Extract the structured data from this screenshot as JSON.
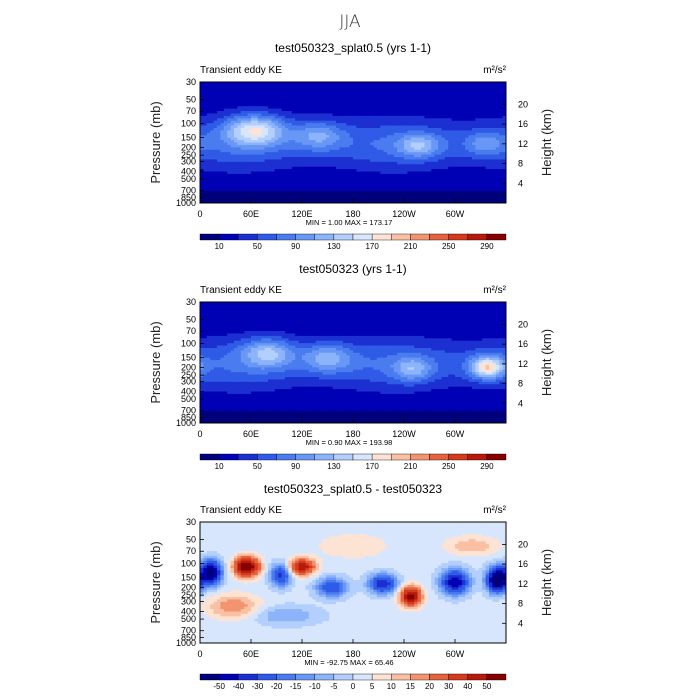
{
  "figure": {
    "suptitle": "JJA"
  },
  "colormaps": {
    "ke": [
      "#00007a",
      "#0000b4",
      "#1c30d2",
      "#2f5be6",
      "#4a7cf0",
      "#6897f6",
      "#8db4fb",
      "#b3cffd",
      "#d8e6fd",
      "#fde3d4",
      "#f9c0a4",
      "#f29470",
      "#e5623f",
      "#d53a1c",
      "#b71a0c",
      "#860000"
    ],
    "diff": [
      "#00007a",
      "#0000b4",
      "#1c30d2",
      "#2f5be6",
      "#4a7cf0",
      "#6897f6",
      "#8db4fb",
      "#b3cffd",
      "#d8e6fd",
      "#fde3d4",
      "#f9c0a4",
      "#f29470",
      "#e5623f",
      "#d53a1c",
      "#b71a0c",
      "#860000"
    ]
  },
  "chart_data": [
    {
      "type": "heatmap",
      "title": "test050323_splat0.5 (yrs 1-1)",
      "subtitle_left": "Transient eddy KE",
      "units": "m²/s²",
      "ylabel": "Pressure (mb)",
      "ylabel_right": "Height (km)",
      "xticks": [
        "0",
        "60E",
        "120E",
        "180",
        "120W",
        "60W"
      ],
      "xtick_lon": [
        0,
        60,
        120,
        180,
        240,
        300
      ],
      "xlim_lon": [
        0,
        360
      ],
      "yticks": [
        30,
        50,
        70,
        100,
        150,
        200,
        250,
        300,
        400,
        500,
        700,
        850,
        1000
      ],
      "ylim_mb": [
        1000,
        30
      ],
      "yscale": "log",
      "height_ticks_km": [
        4,
        8,
        12,
        16,
        20
      ],
      "min_label": "MIN =",
      "min_value": "1.00",
      "max_label": "MAX =",
      "max_value": "173.17",
      "colorbar_levels": [
        10,
        30,
        50,
        70,
        90,
        110,
        130,
        150,
        170,
        190,
        210,
        230,
        250,
        270,
        290
      ],
      "colorbar_ticks": [
        10,
        50,
        90,
        130,
        170,
        210,
        250,
        290
      ],
      "colormap": "ke",
      "jets": [
        {
          "lon": 65,
          "p": 120,
          "value": 175,
          "lon_width": 35,
          "logp_width": 0.19
        },
        {
          "lon": 140,
          "p": 140,
          "value": 120,
          "lon_width": 28,
          "logp_width": 0.18
        },
        {
          "lon": 258,
          "p": 190,
          "value": 125,
          "lon_width": 25,
          "logp_width": 0.15
        },
        {
          "lon": 335,
          "p": 180,
          "value": 105,
          "lon_width": 22,
          "logp_width": 0.15
        }
      ]
    },
    {
      "type": "heatmap",
      "title": "test050323 (yrs 1-1)",
      "subtitle_left": "Transient eddy KE",
      "units": "m²/s²",
      "ylabel": "Pressure (mb)",
      "ylabel_right": "Height (km)",
      "xticks": [
        "0",
        "60E",
        "120E",
        "180",
        "120W",
        "60W"
      ],
      "xtick_lon": [
        0,
        60,
        120,
        180,
        240,
        300
      ],
      "xlim_lon": [
        0,
        360
      ],
      "yticks": [
        30,
        50,
        70,
        100,
        150,
        200,
        250,
        300,
        400,
        500,
        700,
        850,
        1000
      ],
      "ylim_mb": [
        1000,
        30
      ],
      "yscale": "log",
      "height_ticks_km": [
        4,
        8,
        12,
        16,
        20
      ],
      "min_label": "MIN =",
      "min_value": "0.90",
      "max_label": "MAX =",
      "max_value": "193.98",
      "colorbar_levels": [
        10,
        30,
        50,
        70,
        90,
        110,
        130,
        150,
        170,
        190,
        210,
        230,
        250,
        270,
        290
      ],
      "colorbar_ticks": [
        10,
        50,
        90,
        130,
        170,
        210,
        250,
        290
      ],
      "colormap": "ke",
      "jets": [
        {
          "lon": 80,
          "p": 130,
          "value": 140,
          "lon_width": 30,
          "logp_width": 0.18
        },
        {
          "lon": 150,
          "p": 150,
          "value": 125,
          "lon_width": 28,
          "logp_width": 0.18
        },
        {
          "lon": 250,
          "p": 210,
          "value": 120,
          "lon_width": 22,
          "logp_width": 0.15
        },
        {
          "lon": 338,
          "p": 200,
          "value": 190,
          "lon_width": 20,
          "logp_width": 0.14
        }
      ]
    },
    {
      "type": "heatmap",
      "title": "test050323_splat0.5 - test050323",
      "subtitle_left": "Transient eddy KE",
      "units": "m²/s²",
      "ylabel": "Pressure (mb)",
      "ylabel_right": "Height (km)",
      "xticks": [
        "0",
        "60E",
        "120E",
        "180",
        "120W",
        "60W"
      ],
      "xtick_lon": [
        0,
        60,
        120,
        180,
        240,
        300
      ],
      "xlim_lon": [
        0,
        360
      ],
      "yticks": [
        30,
        50,
        70,
        100,
        150,
        200,
        250,
        300,
        400,
        500,
        700,
        850,
        1000
      ],
      "ylim_mb": [
        1000,
        30
      ],
      "yscale": "log",
      "height_ticks_km": [
        4,
        8,
        12,
        16,
        20
      ],
      "min_label": "MIN =",
      "min_value": "-92.75",
      "max_label": "MAX =",
      "max_value": "65.46",
      "colorbar_levels": [
        -50,
        -40,
        -30,
        -20,
        -15,
        -10,
        -5,
        0,
        5,
        10,
        15,
        20,
        30,
        40,
        50
      ],
      "colorbar_ticks": [
        -50,
        -40,
        -30,
        -20,
        -15,
        -10,
        -5,
        0,
        5,
        10,
        15,
        20,
        30,
        40,
        50
      ],
      "colormap": "diff",
      "anomalies": [
        {
          "lon": 55,
          "p": 110,
          "value": 62,
          "lon_width": 14,
          "logp_width": 0.12
        },
        {
          "lon": 13,
          "p": 130,
          "value": -60,
          "lon_width": 12,
          "logp_width": 0.15
        },
        {
          "lon": 95,
          "p": 140,
          "value": -35,
          "lon_width": 12,
          "logp_width": 0.14
        },
        {
          "lon": 120,
          "p": 110,
          "value": 45,
          "lon_width": 15,
          "logp_width": 0.1
        },
        {
          "lon": 155,
          "p": 200,
          "value": -30,
          "lon_width": 18,
          "logp_width": 0.12
        },
        {
          "lon": 215,
          "p": 180,
          "value": -40,
          "lon_width": 16,
          "logp_width": 0.12
        },
        {
          "lon": 248,
          "p": 260,
          "value": 55,
          "lon_width": 12,
          "logp_width": 0.12
        },
        {
          "lon": 300,
          "p": 170,
          "value": -50,
          "lon_width": 16,
          "logp_width": 0.15
        },
        {
          "lon": 350,
          "p": 160,
          "value": -70,
          "lon_width": 12,
          "logp_width": 0.15
        },
        {
          "lon": 40,
          "p": 350,
          "value": 18,
          "lon_width": 30,
          "logp_width": 0.15
        },
        {
          "lon": 320,
          "p": 60,
          "value": 12,
          "lon_width": 30,
          "logp_width": 0.12
        },
        {
          "lon": 180,
          "p": 60,
          "value": 8,
          "lon_width": 40,
          "logp_width": 0.15
        },
        {
          "lon": 100,
          "p": 450,
          "value": -12,
          "lon_width": 40,
          "logp_width": 0.12
        }
      ]
    }
  ]
}
